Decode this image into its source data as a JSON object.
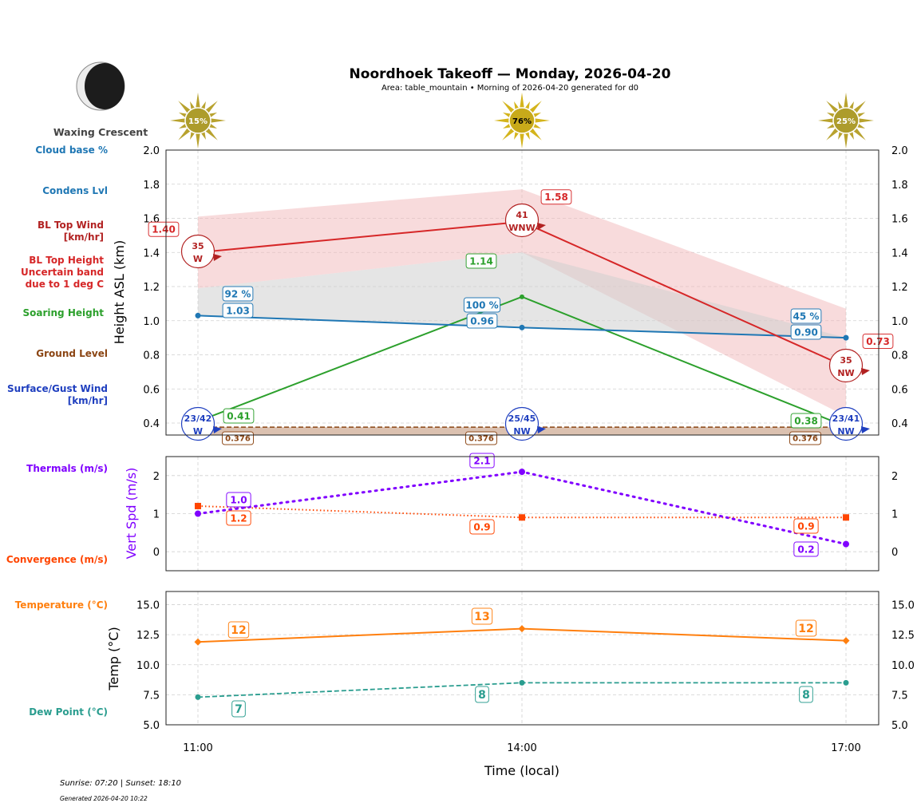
{
  "header": {
    "title": "Noordhoek Takeoff — Monday, 2026-04-20",
    "subtitle": "Area: table_mountain • Morning of 2026-04-20 generated for d0",
    "moon_phase": "Waxing Crescent"
  },
  "side_labels": {
    "cloud_base": "Cloud base %",
    "condens": "Condens Lvl",
    "bl_wind_1": "BL Top Wind",
    "bl_wind_2": "[km/hr]",
    "bl_height_1": "BL Top Height",
    "bl_height_2": "Uncertain band",
    "bl_height_3": "due to 1 deg C",
    "soaring": "Soaring Height",
    "ground": "Ground Level",
    "surface_1": "Surface/Gust Wind",
    "surface_2": "[km/hr]",
    "thermals": "Thermals (m/s)",
    "convergence": "Convergence (m/s)",
    "temperature": "Temperature (°C)",
    "dew_point": "Dew Point (°C)"
  },
  "colors": {
    "cloud": "#1f77b4",
    "bl_top": "#d62728",
    "bl_wind": "#b22222",
    "soaring": "#2ca02c",
    "ground": "#8b4513",
    "surface": "#1f3fbf",
    "thermals": "#8000ff",
    "convergence": "#ff4500",
    "temperature": "#ff7f0e",
    "dew_point": "#2a9d8f",
    "sun": "#c8a820"
  },
  "footer": {
    "sun_times": "Sunrise: 07:20 | Sunset: 18:10",
    "generated": "Generated 2026-04-20 10:22"
  },
  "chart_data": [
    {
      "type": "line",
      "ylabel": "Height ASL (km)",
      "x": [
        "11:00",
        "14:00",
        "17:00"
      ],
      "ylim": [
        0.33,
        2.0
      ],
      "yticks": [
        "0.4",
        "0.6",
        "0.8",
        "1.0",
        "1.2",
        "1.4",
        "1.6",
        "1.8",
        "2.0"
      ],
      "grid": true,
      "sun_percent": [
        "15%",
        "76%",
        "25%"
      ],
      "series": [
        {
          "name": "BL Top Height",
          "values": [
            1.4,
            1.58,
            0.73
          ],
          "labels": [
            "1.40",
            "1.58",
            "0.73"
          ]
        },
        {
          "name": "Uncertain band",
          "upper": [
            1.61,
            1.77,
            1.07
          ],
          "lower": [
            1.19,
            1.4,
            0.44
          ]
        },
        {
          "name": "Condens Lvl",
          "values": [
            1.03,
            0.96,
            0.9
          ],
          "labels": [
            "1.03",
            "0.96",
            "0.90"
          ]
        },
        {
          "name": "Cloud base %",
          "labels": [
            "92 %",
            "100 %",
            "45 %"
          ]
        },
        {
          "name": "Soaring Height",
          "values": [
            0.41,
            1.14,
            0.38
          ],
          "labels": [
            "0.41",
            "1.14",
            "0.38"
          ]
        },
        {
          "name": "Ground Level",
          "values": [
            0.376,
            0.376,
            0.376
          ],
          "labels": [
            "0.376",
            "0.376",
            "0.376"
          ]
        }
      ],
      "bl_top_wind": [
        {
          "speed": "35",
          "dir": "W"
        },
        {
          "speed": "41",
          "dir": "WNW"
        },
        {
          "speed": "35",
          "dir": "NW"
        }
      ],
      "surface_wind": [
        {
          "speed": "23/42",
          "dir": "W"
        },
        {
          "speed": "25/45",
          "dir": "NW"
        },
        {
          "speed": "23/41",
          "dir": "NW"
        }
      ]
    },
    {
      "type": "line",
      "ylabel": "Vert Spd (m/s)",
      "x": [
        "11:00",
        "14:00",
        "17:00"
      ],
      "ylim": [
        -0.5,
        2.5
      ],
      "yticks": [
        "0",
        "1",
        "2"
      ],
      "grid": true,
      "series": [
        {
          "name": "Thermals (m/s)",
          "values": [
            1.0,
            2.1,
            0.2
          ],
          "labels": [
            "1.0",
            "2.1",
            "0.2"
          ]
        },
        {
          "name": "Convergence (m/s)",
          "values": [
            1.2,
            0.9,
            0.9
          ],
          "labels": [
            "1.2",
            "0.9",
            "0.9"
          ]
        }
      ]
    },
    {
      "type": "line",
      "ylabel": "Temp (°C)",
      "xlabel": "Time (local)",
      "x": [
        "11:00",
        "14:00",
        "17:00"
      ],
      "ylim": [
        5.0,
        16.1
      ],
      "yticks": [
        "5.0",
        "7.5",
        "10.0",
        "12.5",
        "15.0"
      ],
      "grid": true,
      "series": [
        {
          "name": "Temperature (°C)",
          "values": [
            11.9,
            13.0,
            12.0
          ],
          "labels": [
            "12",
            "13",
            "12"
          ]
        },
        {
          "name": "Dew Point (°C)",
          "values": [
            7.3,
            8.5,
            8.5
          ],
          "labels": [
            "7",
            "8",
            "8"
          ]
        }
      ]
    }
  ]
}
